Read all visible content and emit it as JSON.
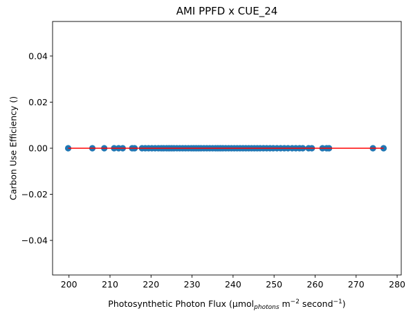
{
  "chart_data": {
    "type": "scatter",
    "title": "AMI PPFD x CUE_24",
    "xlabel": {
      "prefix": "Photosynthetic Photon Flux (µmol",
      "sub": "photons",
      "mid": " m",
      "sup1": "−2",
      "mid2": " second",
      "sup2": "−1",
      "suffix": ")"
    },
    "ylabel": "Carbon Use Efficiency ()",
    "xlim": [
      196,
      281
    ],
    "ylim": [
      -0.055,
      0.055
    ],
    "xticks": [
      200,
      210,
      220,
      230,
      240,
      250,
      260,
      270,
      280
    ],
    "xtick_labels": [
      "200",
      "210",
      "220",
      "230",
      "240",
      "250",
      "260",
      "270",
      "280"
    ],
    "yticks": [
      -0.04,
      -0.02,
      0.0,
      0.02,
      0.04
    ],
    "ytick_labels": [
      "−0.04",
      "−0.02",
      "0.00",
      "0.02",
      "0.04"
    ],
    "grid": false,
    "series": [
      {
        "marker_color": "#1f77b4",
        "x": [
          199.8,
          205.7,
          208.6,
          211.0,
          212.1,
          213.1,
          215.4,
          216.0,
          217.8,
          218.6,
          219.4,
          220.2,
          221.0,
          221.8,
          222.5,
          223.1,
          223.8,
          224.4,
          225.0,
          225.6,
          226.3,
          227.0,
          227.7,
          228.4,
          229.1,
          229.8,
          230.4,
          231.0,
          231.6,
          232.2,
          232.9,
          233.6,
          234.3,
          235.0,
          235.7,
          236.3,
          236.9,
          237.5,
          238.2,
          238.9,
          239.6,
          240.3,
          241.0,
          241.7,
          242.4,
          243.1,
          243.8,
          244.5,
          245.2,
          245.9,
          246.6,
          247.4,
          248.2,
          249.0,
          249.8,
          250.7,
          251.6,
          252.5,
          253.4,
          254.4,
          255.3,
          256.2,
          257.0,
          258.4,
          259.2,
          261.8,
          262.8,
          263.4,
          274.1,
          276.7
        ],
        "y_value": 0.0
      }
    ],
    "fit_line": {
      "color": "#ff0000",
      "x": [
        199.8,
        276.7
      ],
      "y": [
        0.0,
        0.0
      ]
    }
  }
}
